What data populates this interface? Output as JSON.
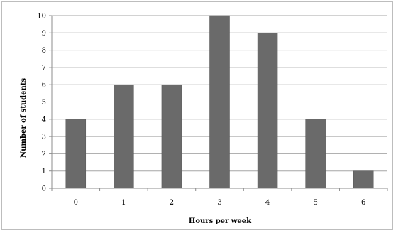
{
  "chart_data": {
    "type": "bar",
    "title": "",
    "xlabel": "Hours per week",
    "ylabel": "Number of students",
    "categories": [
      "0",
      "1",
      "2",
      "3",
      "4",
      "5",
      "6"
    ],
    "values": [
      4,
      6,
      6,
      10,
      9,
      4,
      1
    ],
    "ylim": [
      0,
      10
    ],
    "yticks": [
      "0",
      "1",
      "2",
      "3",
      "4",
      "5",
      "6",
      "7",
      "8",
      "9",
      "10"
    ],
    "grid": "horizontal",
    "legend": "none",
    "colors": {
      "bar": "#6a6a6a",
      "bar_stroke": "#555555",
      "grid": "#a6a6a6",
      "axis": "#8c8c8c"
    }
  }
}
